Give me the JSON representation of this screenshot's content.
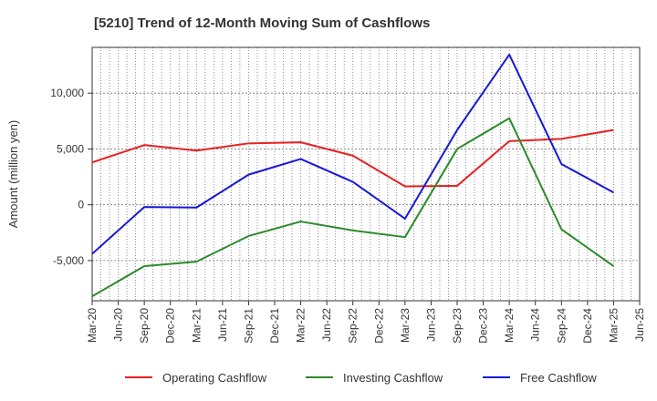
{
  "chart_data": {
    "type": "line",
    "title": "[5210]  Trend of 12-Month Moving Sum of Cashflows",
    "xlabel": "",
    "ylabel": "Amount (million yen)",
    "categories": [
      "Mar-20",
      "Jun-20",
      "Sep-20",
      "Dec-20",
      "Mar-21",
      "Jun-21",
      "Sep-21",
      "Dec-21",
      "Mar-22",
      "Jun-22",
      "Sep-22",
      "Dec-22",
      "Mar-23",
      "Jun-23",
      "Sep-23",
      "Dec-23",
      "Mar-24",
      "Jun-24",
      "Sep-24",
      "Dec-24",
      "Mar-25",
      "Jun-25"
    ],
    "ylim": [
      -8600,
      14100
    ],
    "yticks": [
      -5000,
      0,
      5000,
      10000
    ],
    "ytick_labels": [
      "-5,000",
      "0",
      "5,000",
      "10,000"
    ],
    "grid": true,
    "legend_position": "bottom",
    "series": [
      {
        "name": "Operating Cashflow",
        "color": "#e8201f",
        "points": [
          {
            "x": "Mar-20",
            "y": 3800
          },
          {
            "x": "Sep-20",
            "y": 5350
          },
          {
            "x": "Mar-21",
            "y": 4850
          },
          {
            "x": "Sep-21",
            "y": 5500
          },
          {
            "x": "Mar-22",
            "y": 5600
          },
          {
            "x": "Sep-22",
            "y": 4400
          },
          {
            "x": "Mar-23",
            "y": 1650
          },
          {
            "x": "Sep-23",
            "y": 1700
          },
          {
            "x": "Mar-24",
            "y": 5700
          },
          {
            "x": "Sep-24",
            "y": 5900
          },
          {
            "x": "Mar-25",
            "y": 6700
          }
        ]
      },
      {
        "name": "Investing Cashflow",
        "color": "#2a8a2a",
        "points": [
          {
            "x": "Mar-20",
            "y": -8200
          },
          {
            "x": "Sep-20",
            "y": -5500
          },
          {
            "x": "Mar-21",
            "y": -5100
          },
          {
            "x": "Sep-21",
            "y": -2800
          },
          {
            "x": "Mar-22",
            "y": -1500
          },
          {
            "x": "Sep-22",
            "y": -2300
          },
          {
            "x": "Mar-23",
            "y": -2900
          },
          {
            "x": "Sep-23",
            "y": 5000
          },
          {
            "x": "Mar-24",
            "y": 7750
          },
          {
            "x": "Sep-24",
            "y": -2200
          },
          {
            "x": "Mar-25",
            "y": -5500
          }
        ]
      },
      {
        "name": "Free Cashflow",
        "color": "#1818d8",
        "points": [
          {
            "x": "Mar-20",
            "y": -4400
          },
          {
            "x": "Sep-20",
            "y": -200
          },
          {
            "x": "Mar-21",
            "y": -250
          },
          {
            "x": "Sep-21",
            "y": 2700
          },
          {
            "x": "Mar-22",
            "y": 4100
          },
          {
            "x": "Sep-22",
            "y": 2050
          },
          {
            "x": "Mar-23",
            "y": -1250
          },
          {
            "x": "Sep-23",
            "y": 6700
          },
          {
            "x": "Mar-24",
            "y": 13450
          },
          {
            "x": "Sep-24",
            "y": 3650
          },
          {
            "x": "Mar-25",
            "y": 1100
          }
        ]
      }
    ]
  }
}
